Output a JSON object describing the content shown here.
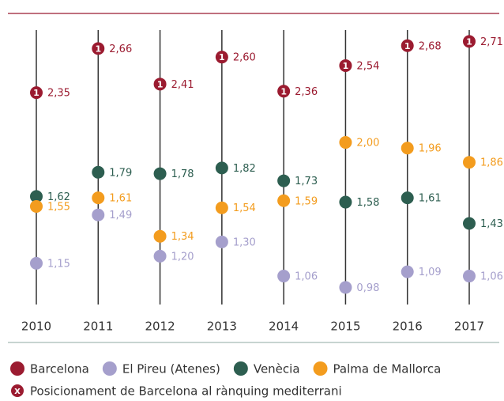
{
  "chart_data": {
    "type": "dot",
    "categories": [
      "2010",
      "2011",
      "2012",
      "2013",
      "2014",
      "2015",
      "2016",
      "2017"
    ],
    "series": [
      {
        "name": "Barcelona",
        "color": "#9b1b30",
        "marker_label": "1",
        "values": [
          2.35,
          2.66,
          2.41,
          2.6,
          2.36,
          2.54,
          2.68,
          2.71
        ],
        "value_labels": [
          "2,35",
          "2,66",
          "2,41",
          "2,60",
          "2,36",
          "2,54",
          "2,68",
          "2,71"
        ]
      },
      {
        "name": "El Pireu (Atenes)",
        "color": "#a59fcc",
        "values": [
          1.15,
          1.49,
          1.2,
          1.3,
          1.06,
          0.98,
          1.09,
          1.06
        ],
        "value_labels": [
          "1,15",
          "1,49",
          "1,20",
          "1,30",
          "1,06",
          "0,98",
          "1,09",
          "1,06"
        ]
      },
      {
        "name": "Venècia",
        "color": "#2d5e50",
        "values": [
          1.62,
          1.79,
          1.78,
          1.82,
          1.73,
          1.58,
          1.61,
          1.43
        ],
        "value_labels": [
          "1,62",
          "1,79",
          "1,78",
          "1,82",
          "1,73",
          "1,58",
          "1,61",
          "1,43"
        ]
      },
      {
        "name": "Palma de Mallorca",
        "color": "#f39c1e",
        "values": [
          1.55,
          1.61,
          1.34,
          1.54,
          1.59,
          2.0,
          1.96,
          1.86
        ],
        "value_labels": [
          "1,55",
          "1,61",
          "1,34",
          "1,54",
          "1,59",
          "2,00",
          "1,96",
          "1,86"
        ]
      }
    ],
    "ylim": [
      0.86,
      2.79
    ],
    "note": {
      "icon": "X",
      "text": "Posicionament de Barcelona al rànquing mediterrani"
    }
  }
}
